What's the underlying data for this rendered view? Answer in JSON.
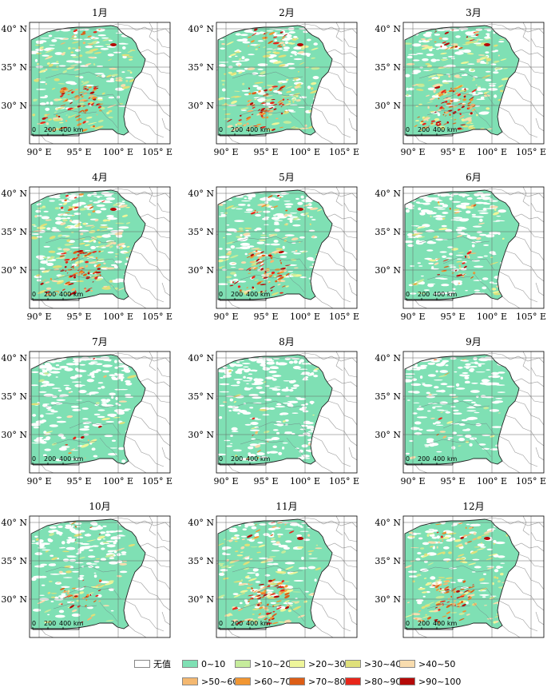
{
  "months": [
    "1月",
    "2月",
    "3月",
    "4月",
    "5月",
    "6月",
    "7月",
    "8月",
    "9月",
    "10月",
    "11月",
    "12月"
  ],
  "x_ticks": [
    "90° E",
    "95° E",
    "100° E",
    "105° E"
  ],
  "y_ticks": [
    "40° N",
    "35° N",
    "30° N"
  ],
  "scale_bar": {
    "labels": [
      "0",
      "200",
      "400 km"
    ]
  },
  "legend": [
    {
      "label": "无值",
      "color": "#ffffff"
    },
    {
      "label": "0~10",
      "color": "#7fe0b4"
    },
    {
      "label": ">10~20",
      "color": "#c6ec9c"
    },
    {
      "label": ">20~30",
      "color": "#eef59a"
    },
    {
      "label": ">30~40",
      "color": "#dfe07a"
    },
    {
      "label": ">40~50",
      "color": "#f8dcae"
    },
    {
      "label": ">50~60",
      "color": "#f4b870"
    },
    {
      "label": ">60~70",
      "color": "#f19632"
    },
    {
      "label": ">70~80",
      "color": "#dd5e16"
    },
    {
      "label": ">80~90",
      "color": "#e8261a"
    },
    {
      "label": ">90~100",
      "color": "#b50a08"
    }
  ],
  "hot_intensity": [
    0.9,
    0.85,
    1.0,
    0.95,
    0.75,
    0.25,
    0.08,
    0.06,
    0.05,
    0.35,
    0.85,
    0.8
  ],
  "white_extent": [
    0.45,
    0.55,
    0.55,
    0.7,
    0.7,
    0.95,
    1.0,
    1.0,
    0.85,
    0.75,
    0.55,
    0.45
  ]
}
